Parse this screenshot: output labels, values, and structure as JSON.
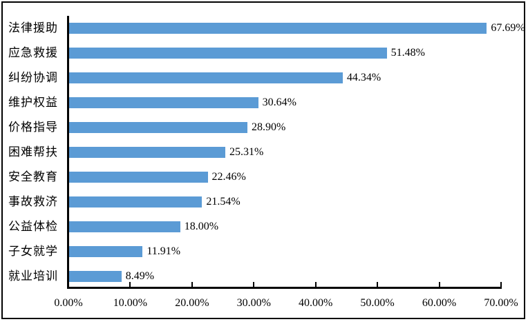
{
  "chart_data": {
    "type": "bar",
    "orientation": "horizontal",
    "title": "",
    "xlabel": "",
    "ylabel": "",
    "grid": false,
    "legend_position": "none",
    "bar_color": "#5B9BD5",
    "axis_color": "#000000",
    "text_color": "#000000",
    "xlim": [
      0,
      70
    ],
    "x_ticks": [
      "0.00%",
      "10.00%",
      "20.00%",
      "30.00%",
      "40.00%",
      "50.00%",
      "60.00%",
      "70.00%"
    ],
    "categories": [
      "法律援助",
      "应急救援",
      "纠纷协调",
      "维护权益",
      "价格指导",
      "困难帮扶",
      "安全教育",
      "事故救济",
      "公益体检",
      "子女就学",
      "就业培训"
    ],
    "values": [
      67.69,
      51.48,
      44.34,
      30.64,
      28.9,
      25.31,
      22.46,
      21.54,
      18.0,
      11.91,
      8.49
    ],
    "data_labels": [
      "67.69%",
      "51.48%",
      "44.34%",
      "30.64%",
      "28.90%",
      "25.31%",
      "22.46%",
      "21.54%",
      "18.00%",
      "11.91%",
      "8.49%"
    ]
  }
}
